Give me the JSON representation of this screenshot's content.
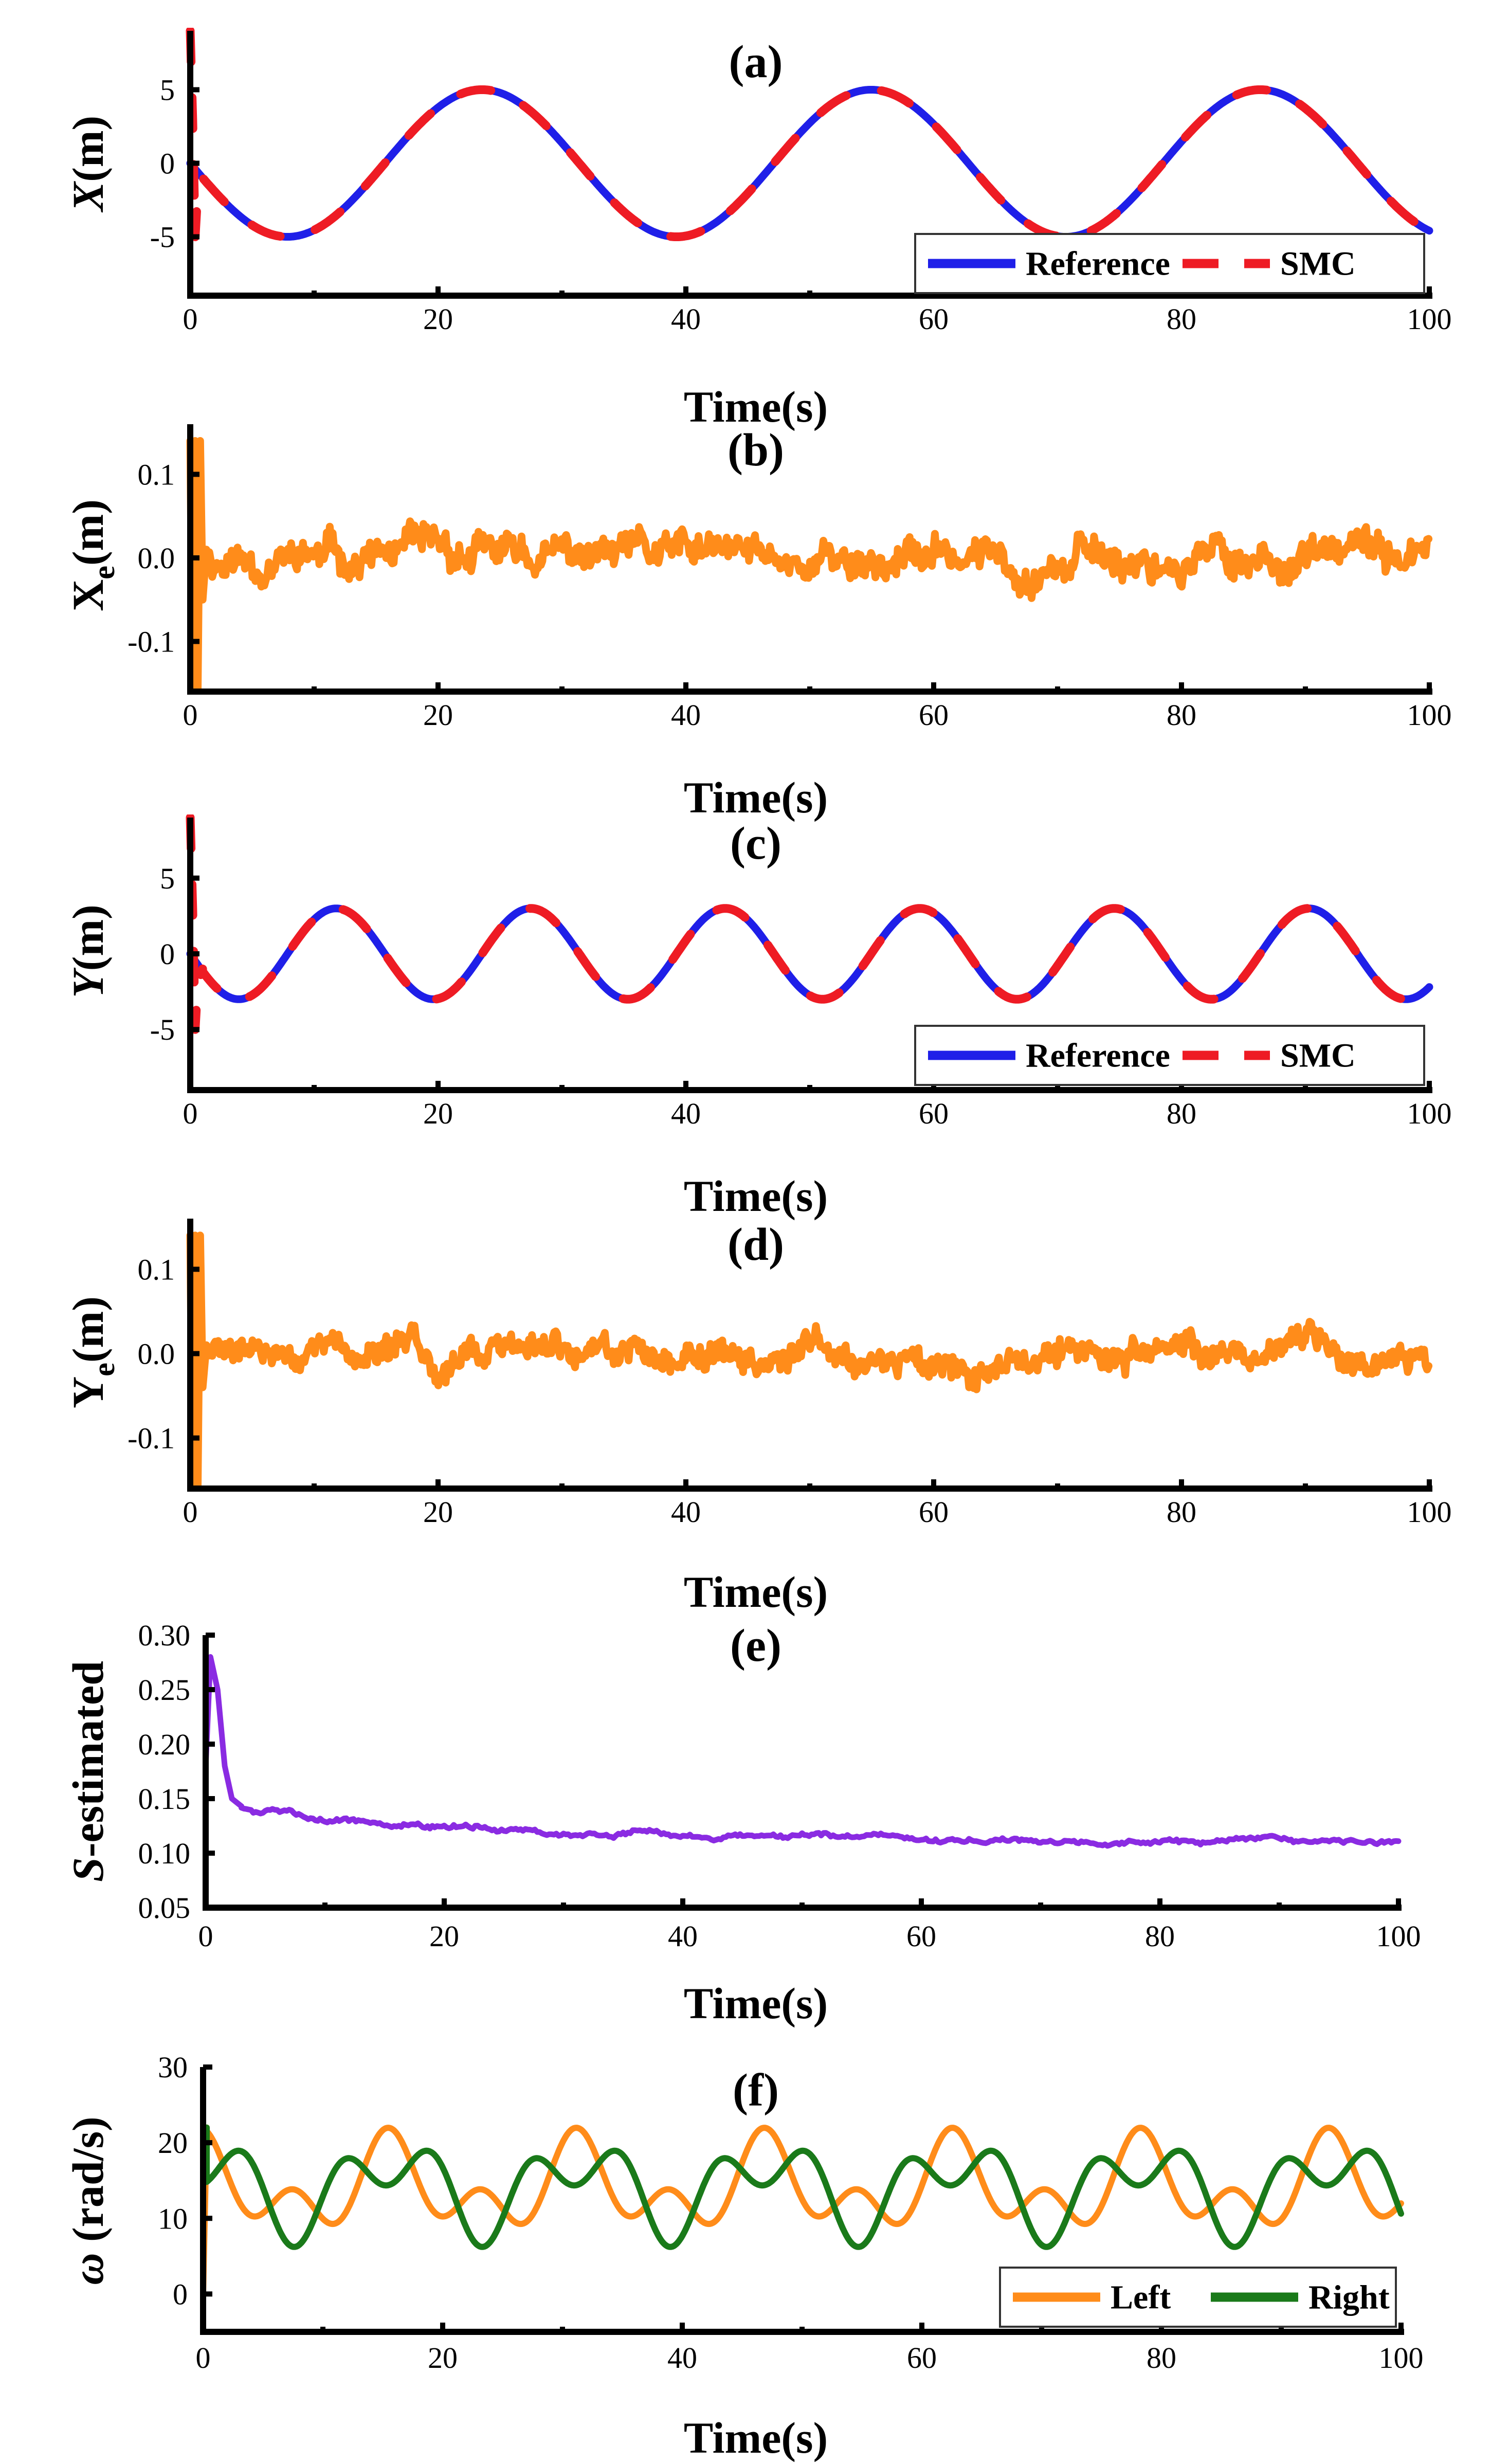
{
  "chart_data": [
    {
      "id": "a",
      "panel_label": "(a)",
      "type": "line",
      "title": "(a)",
      "xlabel": "Time(s)",
      "ylabel_main": "X",
      "ylabel_sub": "",
      "ylabel_unit": "(m)",
      "ylabel_italic": true,
      "xlim": [
        0,
        100
      ],
      "ylim": [
        -9,
        9
      ],
      "xticks": [
        0,
        20,
        40,
        60,
        80,
        100
      ],
      "xtick_labels": [
        "0",
        "20",
        "40",
        "60",
        "80",
        "100"
      ],
      "yticks": [
        -5,
        0,
        5
      ],
      "ytick_labels": [
        "-5",
        "0",
        "5"
      ],
      "legend": {
        "position": "bottom-right",
        "entries": [
          "Reference",
          "SMC"
        ]
      },
      "series": [
        {
          "name": "Reference",
          "color": "#1f1fe8",
          "style": "solid",
          "model": {
            "kind": "sine",
            "amplitude": 5,
            "period": 31.4,
            "phase_deg": 180,
            "start": 0
          }
        },
        {
          "name": "SMC",
          "color": "#ee1b24",
          "style": "dashed",
          "points": [
            [
              0,
              9
            ],
            [
              0.2,
              3
            ],
            [
              0.4,
              -5
            ],
            [
              0.6,
              -2
            ],
            [
              1,
              -1
            ]
          ],
          "model": {
            "kind": "sine",
            "amplitude": 5,
            "period": 31.4,
            "phase_deg": 180,
            "start": 1
          }
        }
      ]
    },
    {
      "id": "b",
      "panel_label": "(b)",
      "type": "line",
      "title": "(b)",
      "xlabel": "Time(s)",
      "ylabel_main": "X",
      "ylabel_sub": "e",
      "ylabel_unit": "(m)",
      "ylabel_italic": false,
      "xlim": [
        0,
        100
      ],
      "ylim": [
        -0.16,
        0.16
      ],
      "xticks": [
        0,
        20,
        40,
        60,
        80,
        100
      ],
      "xtick_labels": [
        "0",
        "20",
        "40",
        "60",
        "80",
        "100"
      ],
      "yticks": [
        -0.1,
        0.0,
        0.1
      ],
      "ytick_labels": [
        "-0.1",
        "0.0",
        "0.1"
      ],
      "series": [
        {
          "name": "Xe",
          "color": "#ff8c1a",
          "style": "solid",
          "initial": [
            [
              0,
              0.14
            ],
            [
              0.2,
              -0.16
            ],
            [
              0.4,
              0.14
            ],
            [
              0.6,
              -0.16
            ],
            [
              0.8,
              0.14
            ],
            [
              1,
              -0.05
            ],
            [
              1.3,
              0.01
            ]
          ],
          "model": {
            "kind": "noise",
            "mean": 0.0,
            "amplitude": 0.03,
            "seed": 11,
            "start": 1.3
          }
        }
      ]
    },
    {
      "id": "c",
      "panel_label": "(c)",
      "type": "line",
      "title": "(c)",
      "xlabel": "Time(s)",
      "ylabel_main": "Y",
      "ylabel_sub": "",
      "ylabel_unit": "(m)",
      "ylabel_italic": true,
      "xlim": [
        0,
        100
      ],
      "ylim": [
        -9,
        9
      ],
      "xticks": [
        0,
        20,
        40,
        60,
        80,
        100
      ],
      "xtick_labels": [
        "0",
        "20",
        "40",
        "60",
        "80",
        "100"
      ],
      "yticks": [
        -5,
        0,
        5
      ],
      "ytick_labels": [
        "-5",
        "0",
        "5"
      ],
      "legend": {
        "position": "bottom-right",
        "entries": [
          "Reference",
          "SMC"
        ]
      },
      "series": [
        {
          "name": "Reference",
          "color": "#1f1fe8",
          "style": "solid",
          "model": {
            "kind": "sine",
            "amplitude": 3,
            "period": 15.7,
            "phase_deg": 180,
            "start": 0
          }
        },
        {
          "name": "SMC",
          "color": "#ee1b24",
          "style": "dashed",
          "points": [
            [
              0,
              9
            ],
            [
              0.2,
              3
            ],
            [
              0.4,
              -5
            ],
            [
              0.6,
              -2
            ],
            [
              1,
              -1
            ]
          ],
          "model": {
            "kind": "sine",
            "amplitude": 3,
            "period": 15.7,
            "phase_deg": 180,
            "start": 1
          }
        }
      ]
    },
    {
      "id": "d",
      "panel_label": "(d)",
      "type": "line",
      "title": "(d)",
      "xlabel": "Time(s)",
      "ylabel_main": "Y",
      "ylabel_sub": "e",
      "ylabel_unit": "(m)",
      "ylabel_italic": false,
      "xlim": [
        0,
        100
      ],
      "ylim": [
        -0.16,
        0.16
      ],
      "xticks": [
        0,
        20,
        40,
        60,
        80,
        100
      ],
      "xtick_labels": [
        "0",
        "20",
        "40",
        "60",
        "80",
        "100"
      ],
      "yticks": [
        -0.1,
        0.0,
        0.1
      ],
      "ytick_labels": [
        "-0.1",
        "0.0",
        "0.1"
      ],
      "series": [
        {
          "name": "Ye",
          "color": "#ff8c1a",
          "style": "solid",
          "initial": [
            [
              0,
              0.14
            ],
            [
              0.2,
              -0.16
            ],
            [
              0.4,
              0.14
            ],
            [
              0.6,
              -0.16
            ],
            [
              0.8,
              0.14
            ],
            [
              1,
              -0.04
            ],
            [
              1.3,
              0.01
            ]
          ],
          "model": {
            "kind": "noise",
            "mean": 0.0,
            "amplitude": 0.025,
            "seed": 29,
            "start": 1.3
          }
        }
      ]
    },
    {
      "id": "e",
      "panel_label": "(e)",
      "type": "line",
      "title": "(e)",
      "xlabel": "Time(s)",
      "ylabel_main": "S",
      "ylabel_sub": "",
      "ylabel_unit": "-estimated",
      "ylabel_italic": true,
      "xlim": [
        0,
        100
      ],
      "ylim": [
        0.05,
        0.3
      ],
      "xticks": [
        0,
        20,
        40,
        60,
        80,
        100
      ],
      "xtick_labels": [
        "0",
        "20",
        "40",
        "60",
        "80",
        "100"
      ],
      "yticks": [
        0.05,
        0.1,
        0.15,
        0.2,
        0.25,
        0.3
      ],
      "ytick_labels": [
        "0.05",
        "0.10",
        "0.15",
        "0.20",
        "0.25",
        "0.30"
      ],
      "series": [
        {
          "name": "S-estimated",
          "color": "#8a2be2",
          "style": "solid",
          "initial": [
            [
              0,
              0.18
            ],
            [
              0.4,
              0.28
            ],
            [
              1,
              0.25
            ],
            [
              1.6,
              0.18
            ],
            [
              2.2,
              0.15
            ],
            [
              3,
              0.143
            ]
          ],
          "model": {
            "kind": "decay",
            "start_value": 0.142,
            "end_value": 0.11,
            "rate": 0.045,
            "noise": 0.003,
            "seed": 5,
            "start": 3
          }
        }
      ]
    },
    {
      "id": "f",
      "panel_label": "(f)",
      "type": "line",
      "title": "(f)",
      "xlabel": "Time(s)",
      "ylabel_main": "ω",
      "ylabel_sub": "",
      "ylabel_unit": " (rad/s)",
      "ylabel_italic": true,
      "xlim": [
        0,
        100
      ],
      "ylim": [
        -5,
        30
      ],
      "xticks": [
        0,
        20,
        40,
        60,
        80,
        100
      ],
      "xtick_labels": [
        "0",
        "20",
        "40",
        "60",
        "80",
        "100"
      ],
      "yticks": [
        0,
        10,
        20,
        30
      ],
      "ytick_labels": [
        "0",
        "10",
        "20",
        "30"
      ],
      "legend": {
        "position": "bottom-right",
        "entries": [
          "Left",
          "Right"
        ]
      },
      "series": [
        {
          "name": "Left",
          "color": "#ff8c1a",
          "style": "solid",
          "initial": [
            [
              0,
              0
            ],
            [
              0.3,
              22
            ]
          ],
          "model": {
            "kind": "wheel",
            "base": 14.1,
            "a1": 4.1,
            "a2": 3.8,
            "period": 15.7,
            "sign": 1,
            "start": 0.3
          }
        },
        {
          "name": "Right",
          "color": "#1a7a1a",
          "style": "solid",
          "initial": [
            [
              0,
              22
            ],
            [
              0.3,
              22
            ]
          ],
          "model": {
            "kind": "wheel",
            "base": 14.1,
            "a1": 4.1,
            "a2": 3.8,
            "period": 15.7,
            "sign": -1,
            "start": 0.3
          }
        }
      ]
    }
  ]
}
